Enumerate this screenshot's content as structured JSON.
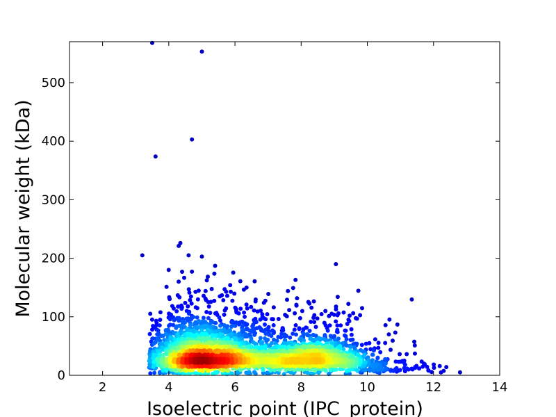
{
  "chart_data": {
    "type": "scatter",
    "title": "",
    "xlabel": "Isoelectric point (IPC_protein)",
    "ylabel": "Molecular weight (kDa)",
    "xlim": [
      1,
      14
    ],
    "ylim": [
      0,
      570
    ],
    "xticks": [
      2,
      4,
      6,
      8,
      10,
      12,
      14
    ],
    "yticks": [
      0,
      100,
      200,
      300,
      400,
      500
    ],
    "grid": false,
    "legend": "none",
    "colormap": "jet (point density)",
    "colors": {
      "low_density": "#00008f",
      "mid_density": "#00ffff",
      "high_density": "#ff0000"
    },
    "annotated_outliers": [
      {
        "x": 3.5,
        "y": 568
      },
      {
        "x": 5.0,
        "y": 553
      },
      {
        "x": 4.7,
        "y": 403
      },
      {
        "x": 3.6,
        "y": 374
      },
      {
        "x": 4.35,
        "y": 226
      },
      {
        "x": 4.3,
        "y": 221
      },
      {
        "x": 3.2,
        "y": 205
      },
      {
        "x": 5.0,
        "y": 203
      },
      {
        "x": 4.6,
        "y": 205
      },
      {
        "x": 9.05,
        "y": 190
      },
      {
        "x": 5.4,
        "y": 187
      },
      {
        "x": 4.7,
        "y": 177
      },
      {
        "x": 4.3,
        "y": 160
      },
      {
        "x": 6.35,
        "y": 150
      },
      {
        "x": 12.8,
        "y": 5
      },
      {
        "x": 10.65,
        "y": 70
      },
      {
        "x": 11.85,
        "y": 8
      }
    ],
    "clusters": [
      {
        "center_x": 5.0,
        "center_y": 28,
        "spread_x": 0.9,
        "spread_y": 22,
        "count": 2600
      },
      {
        "center_x": 7.0,
        "center_y": 25,
        "spread_x": 0.9,
        "spread_y": 16,
        "count": 900
      },
      {
        "center_x": 8.6,
        "center_y": 25,
        "spread_x": 0.75,
        "spread_y": 16,
        "count": 1100
      },
      {
        "center_x": 10.3,
        "center_y": 12,
        "spread_x": 0.9,
        "spread_y": 9,
        "count": 160
      }
    ]
  }
}
